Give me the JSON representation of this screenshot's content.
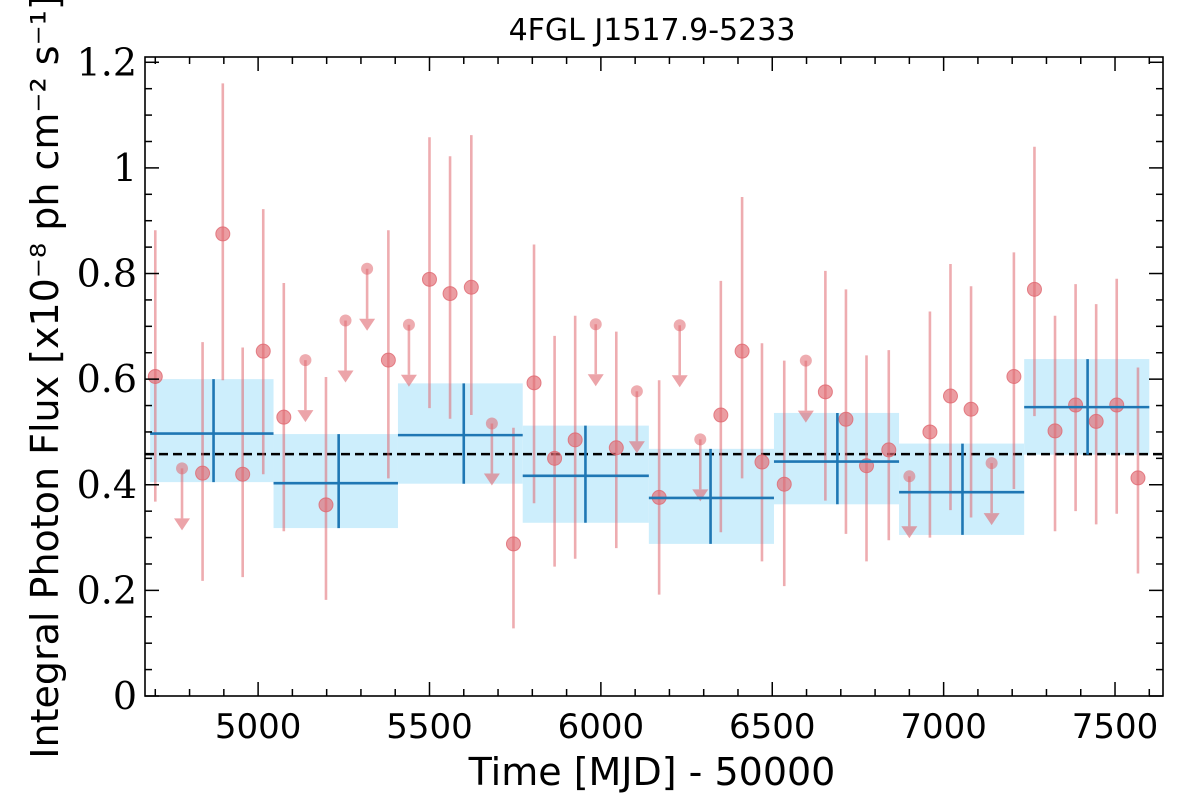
{
  "chart_data": {
    "type": "scatter",
    "title": "4FGL J1517.9-5233",
    "xlabel": "Time [MJD] - 50000",
    "ylabel": "Integral Photon Flux [x10⁻⁸ ph cm⁻² s⁻¹]",
    "xlim": [
      4670,
      7640
    ],
    "ylim": [
      0,
      1.21
    ],
    "xticks": [
      5000,
      5500,
      6000,
      6500,
      7000,
      7500
    ],
    "xtick_labels": [
      "5000",
      "5500",
      "6000",
      "6500",
      "7000",
      "7500"
    ],
    "yticks": [
      0,
      0.2,
      0.4,
      0.6,
      0.8,
      1,
      1.2
    ],
    "ytick_labels": [
      "0",
      "0.2",
      "0.4",
      "0.6",
      "0.8",
      "1",
      "1.2"
    ],
    "mean_flux": 0.458,
    "colors": {
      "points": "#e06870",
      "bins": "#1f77b4",
      "bin_band": "#cdeefc",
      "mean_line": "#000000"
    },
    "binned": [
      {
        "x_low": 4685,
        "x_high": 5045,
        "x": 4870,
        "y": 0.497,
        "y_low": 0.405,
        "y_high": 0.6
      },
      {
        "x_low": 5045,
        "x_high": 5408,
        "x": 5235,
        "y": 0.403,
        "y_low": 0.318,
        "y_high": 0.496
      },
      {
        "x_low": 5408,
        "x_high": 5772,
        "x": 5600,
        "y": 0.494,
        "y_low": 0.402,
        "y_high": 0.592
      },
      {
        "x_low": 5772,
        "x_high": 6140,
        "x": 5955,
        "y": 0.417,
        "y_low": 0.328,
        "y_high": 0.512
      },
      {
        "x_low": 6140,
        "x_high": 6505,
        "x": 6320,
        "y": 0.375,
        "y_low": 0.288,
        "y_high": 0.468
      },
      {
        "x_low": 6505,
        "x_high": 6870,
        "x": 6690,
        "y": 0.444,
        "y_low": 0.363,
        "y_high": 0.536
      },
      {
        "x_low": 6870,
        "x_high": 7235,
        "x": 7055,
        "y": 0.386,
        "y_low": 0.305,
        "y_high": 0.478
      },
      {
        "x_low": 7235,
        "x_high": 7600,
        "x": 7420,
        "y": 0.547,
        "y_low": 0.457,
        "y_high": 0.638
      }
    ],
    "points": [
      {
        "x": 4700,
        "y": 0.605,
        "y_low": 0.368,
        "y_high": 0.882
      },
      {
        "x": 4838,
        "y": 0.422,
        "y_low": 0.218,
        "y_high": 0.67
      },
      {
        "x": 4897,
        "y": 0.875,
        "y_low": 0.598,
        "y_high": 1.16
      },
      {
        "x": 4955,
        "y": 0.42,
        "y_low": 0.225,
        "y_high": 0.66
      },
      {
        "x": 5015,
        "y": 0.653,
        "y_low": 0.42,
        "y_high": 0.922
      },
      {
        "x": 5075,
        "y": 0.528,
        "y_low": 0.312,
        "y_high": 0.782
      },
      {
        "x": 5198,
        "y": 0.362,
        "y_low": 0.182,
        "y_high": 0.604
      },
      {
        "x": 5380,
        "y": 0.636,
        "y_low": 0.412,
        "y_high": 0.882
      },
      {
        "x": 5500,
        "y": 0.789,
        "y_low": 0.545,
        "y_high": 1.058
      },
      {
        "x": 5560,
        "y": 0.762,
        "y_low": 0.525,
        "y_high": 1.022
      },
      {
        "x": 5622,
        "y": 0.774,
        "y_low": 0.532,
        "y_high": 1.062
      },
      {
        "x": 5745,
        "y": 0.288,
        "y_low": 0.128,
        "y_high": 0.508
      },
      {
        "x": 5805,
        "y": 0.593,
        "y_low": 0.365,
        "y_high": 0.855
      },
      {
        "x": 5865,
        "y": 0.45,
        "y_low": 0.245,
        "y_high": 0.682
      },
      {
        "x": 5925,
        "y": 0.485,
        "y_low": 0.26,
        "y_high": 0.72
      },
      {
        "x": 6045,
        "y": 0.47,
        "y_low": 0.28,
        "y_high": 0.69
      },
      {
        "x": 6170,
        "y": 0.376,
        "y_low": 0.192,
        "y_high": 0.598
      },
      {
        "x": 6350,
        "y": 0.532,
        "y_low": 0.31,
        "y_high": 0.786
      },
      {
        "x": 6412,
        "y": 0.653,
        "y_low": 0.412,
        "y_high": 0.945
      },
      {
        "x": 6470,
        "y": 0.443,
        "y_low": 0.255,
        "y_high": 0.668
      },
      {
        "x": 6535,
        "y": 0.401,
        "y_low": 0.208,
        "y_high": 0.635
      },
      {
        "x": 6655,
        "y": 0.576,
        "y_low": 0.37,
        "y_high": 0.805
      },
      {
        "x": 6715,
        "y": 0.524,
        "y_low": 0.307,
        "y_high": 0.77
      },
      {
        "x": 6775,
        "y": 0.436,
        "y_low": 0.255,
        "y_high": 0.645
      },
      {
        "x": 6840,
        "y": 0.466,
        "y_low": 0.295,
        "y_high": 0.655
      },
      {
        "x": 6960,
        "y": 0.5,
        "y_low": 0.3,
        "y_high": 0.728
      },
      {
        "x": 7020,
        "y": 0.568,
        "y_low": 0.352,
        "y_high": 0.818
      },
      {
        "x": 7080,
        "y": 0.543,
        "y_low": 0.338,
        "y_high": 0.776
      },
      {
        "x": 7205,
        "y": 0.605,
        "y_low": 0.392,
        "y_high": 0.84
      },
      {
        "x": 7265,
        "y": 0.77,
        "y_low": 0.53,
        "y_high": 1.04
      },
      {
        "x": 7325,
        "y": 0.502,
        "y_low": 0.312,
        "y_high": 0.72
      },
      {
        "x": 7385,
        "y": 0.551,
        "y_low": 0.35,
        "y_high": 0.78
      },
      {
        "x": 7445,
        "y": 0.52,
        "y_low": 0.325,
        "y_high": 0.742
      },
      {
        "x": 7505,
        "y": 0.551,
        "y_low": 0.345,
        "y_high": 0.79
      },
      {
        "x": 7567,
        "y": 0.413,
        "y_low": 0.232,
        "y_high": 0.622
      }
    ],
    "upper_limits": [
      {
        "x": 4778,
        "y": 0.431
      },
      {
        "x": 5138,
        "y": 0.636
      },
      {
        "x": 5255,
        "y": 0.711
      },
      {
        "x": 5318,
        "y": 0.809
      },
      {
        "x": 5440,
        "y": 0.703
      },
      {
        "x": 5682,
        "y": 0.516
      },
      {
        "x": 5985,
        "y": 0.704
      },
      {
        "x": 6105,
        "y": 0.577
      },
      {
        "x": 6230,
        "y": 0.702
      },
      {
        "x": 6290,
        "y": 0.486
      },
      {
        "x": 6598,
        "y": 0.635
      },
      {
        "x": 6900,
        "y": 0.416
      },
      {
        "x": 7140,
        "y": 0.441
      }
    ]
  }
}
